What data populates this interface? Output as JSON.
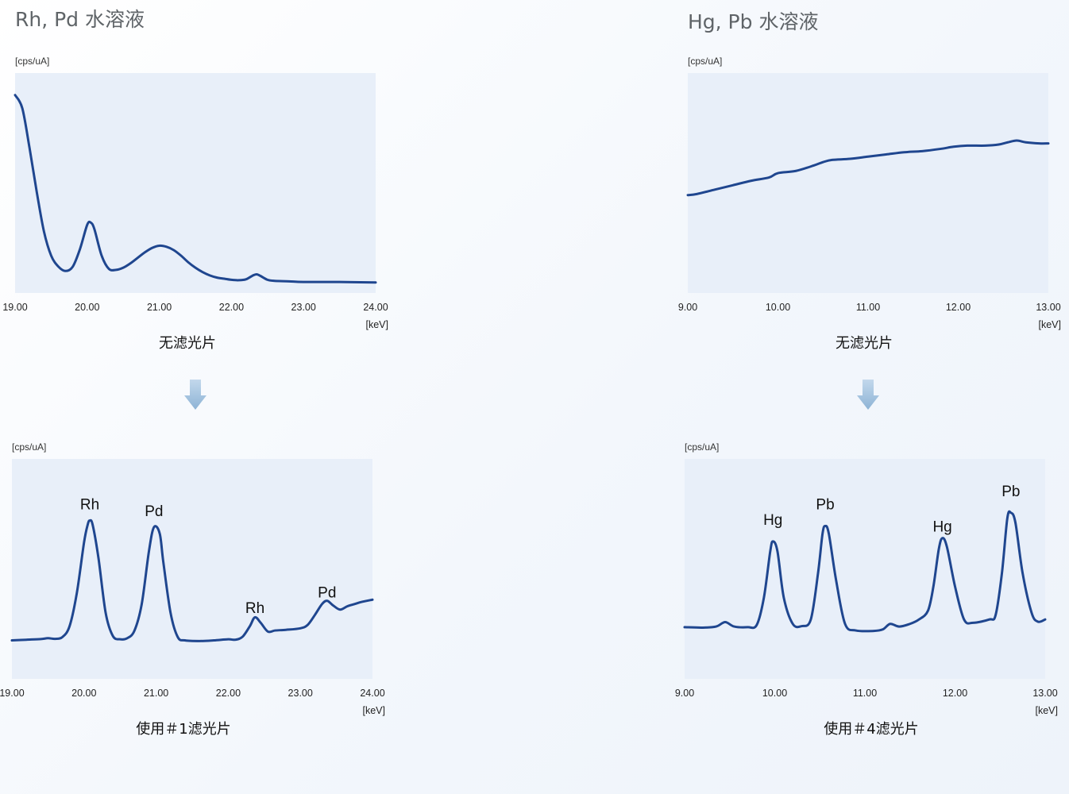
{
  "panels": [
    {
      "title": "Rh, Pd 水溶液",
      "captions": [
        "无滤光片",
        "使用＃1滤光片"
      ],
      "arrow_icon": "down-arrow-icon"
    },
    {
      "title": "Hg, Pb 水溶液",
      "captions": [
        "无滤光片",
        "使用＃4滤光片"
      ],
      "arrow_icon": "down-arrow-icon"
    }
  ],
  "colors": {
    "plot_bg": "#e8eff9",
    "line": "#1f468f",
    "arrow_top": "#bdd4ea",
    "arrow_bottom": "#8fb4d6"
  },
  "chart_data": [
    {
      "type": "line",
      "title": "",
      "ylabel": "[cps/uA]",
      "xlabel": "[keV]",
      "xlim": [
        19.0,
        24.0
      ],
      "ylim": [
        0,
        100
      ],
      "xticks": [
        "19.00",
        "20.00",
        "21.00",
        "22.00",
        "23.00",
        "24.00"
      ],
      "grid": false,
      "peak_labels": [],
      "series": [
        {
          "values": [
            [
              19.0,
              90
            ],
            [
              19.1,
              84
            ],
            [
              19.2,
              66
            ],
            [
              19.3,
              46
            ],
            [
              19.4,
              28
            ],
            [
              19.5,
              17
            ],
            [
              19.6,
              12
            ],
            [
              19.7,
              10
            ],
            [
              19.8,
              12
            ],
            [
              19.9,
              20
            ],
            [
              20.0,
              31
            ],
            [
              20.05,
              32
            ],
            [
              20.1,
              29
            ],
            [
              20.2,
              17
            ],
            [
              20.3,
              11
            ],
            [
              20.4,
              10.5
            ],
            [
              20.5,
              11.5
            ],
            [
              20.6,
              13.5
            ],
            [
              20.7,
              16
            ],
            [
              20.8,
              18.5
            ],
            [
              20.9,
              20.5
            ],
            [
              21.0,
              21.5
            ],
            [
              21.1,
              21
            ],
            [
              21.2,
              19.5
            ],
            [
              21.3,
              17
            ],
            [
              21.4,
              14
            ],
            [
              21.5,
              11.5
            ],
            [
              21.6,
              9.5
            ],
            [
              21.7,
              8
            ],
            [
              21.8,
              7
            ],
            [
              21.9,
              6.5
            ],
            [
              22.0,
              6
            ],
            [
              22.1,
              5.8
            ],
            [
              22.2,
              6.2
            ],
            [
              22.3,
              8
            ],
            [
              22.35,
              8.5
            ],
            [
              22.4,
              7.8
            ],
            [
              22.5,
              6
            ],
            [
              22.6,
              5.5
            ],
            [
              22.8,
              5.3
            ],
            [
              23.0,
              5
            ],
            [
              23.5,
              5
            ],
            [
              24.0,
              4.8
            ]
          ]
        }
      ]
    },
    {
      "type": "line",
      "title": "",
      "ylabel": "[cps/uA]",
      "xlabel": "[keV]",
      "xlim": [
        19.0,
        24.0
      ],
      "ylim": [
        0,
        100
      ],
      "xticks": [
        "19.00",
        "20.00",
        "21.00",
        "22.00",
        "23.00",
        "24.00"
      ],
      "grid": false,
      "peak_labels": [
        {
          "text": "Rh",
          "x": 20.08,
          "y": 77
        },
        {
          "text": "Pd",
          "x": 20.97,
          "y": 74
        },
        {
          "text": "Rh",
          "x": 22.37,
          "y": 30
        },
        {
          "text": "Pd",
          "x": 23.37,
          "y": 37
        }
      ],
      "series": [
        {
          "values": [
            [
              19.0,
              17.5
            ],
            [
              19.2,
              17.8
            ],
            [
              19.4,
              18.1
            ],
            [
              19.5,
              18.5
            ],
            [
              19.6,
              18.2
            ],
            [
              19.7,
              19
            ],
            [
              19.8,
              24
            ],
            [
              19.9,
              39
            ],
            [
              20.0,
              62
            ],
            [
              20.05,
              70
            ],
            [
              20.08,
              72
            ],
            [
              20.12,
              70
            ],
            [
              20.2,
              55
            ],
            [
              20.3,
              30
            ],
            [
              20.4,
              19.5
            ],
            [
              20.5,
              18
            ],
            [
              20.6,
              18.5
            ],
            [
              20.7,
              22
            ],
            [
              20.8,
              34
            ],
            [
              20.9,
              58
            ],
            [
              20.97,
              69
            ],
            [
              21.05,
              66
            ],
            [
              21.1,
              53
            ],
            [
              21.2,
              30
            ],
            [
              21.3,
              19
            ],
            [
              21.4,
              17.5
            ],
            [
              21.6,
              17.2
            ],
            [
              21.8,
              17.5
            ],
            [
              22.0,
              18
            ],
            [
              22.1,
              17.8
            ],
            [
              22.2,
              19.2
            ],
            [
              22.3,
              24
            ],
            [
              22.37,
              28
            ],
            [
              22.45,
              25.5
            ],
            [
              22.55,
              21.5
            ],
            [
              22.65,
              22
            ],
            [
              22.8,
              22.3
            ],
            [
              23.0,
              23
            ],
            [
              23.1,
              24.5
            ],
            [
              23.2,
              29
            ],
            [
              23.3,
              34
            ],
            [
              23.37,
              35.5
            ],
            [
              23.45,
              33.5
            ],
            [
              23.55,
              31.5
            ],
            [
              23.65,
              33
            ],
            [
              23.75,
              34
            ],
            [
              23.85,
              35
            ],
            [
              24.0,
              36
            ]
          ]
        }
      ]
    },
    {
      "type": "line",
      "title": "",
      "ylabel": "[cps/uA]",
      "xlabel": "[keV]",
      "xlim": [
        9.0,
        13.0
      ],
      "ylim": [
        0,
        100
      ],
      "xticks": [
        "9.00",
        "10.00",
        "11.00",
        "12.00",
        "13.00"
      ],
      "grid": false,
      "peak_labels": [],
      "series": [
        {
          "values": [
            [
              9.0,
              44.5
            ],
            [
              9.1,
              45
            ],
            [
              9.3,
              47
            ],
            [
              9.5,
              49
            ],
            [
              9.7,
              51
            ],
            [
              9.9,
              52.5
            ],
            [
              10.0,
              54.5
            ],
            [
              10.2,
              55.5
            ],
            [
              10.4,
              58
            ],
            [
              10.5,
              59.5
            ],
            [
              10.6,
              60.5
            ],
            [
              10.8,
              61
            ],
            [
              11.0,
              62
            ],
            [
              11.2,
              63
            ],
            [
              11.4,
              64
            ],
            [
              11.6,
              64.5
            ],
            [
              11.8,
              65.5
            ],
            [
              11.95,
              66.5
            ],
            [
              12.1,
              67
            ],
            [
              12.3,
              67
            ],
            [
              12.45,
              67.5
            ],
            [
              12.55,
              68.5
            ],
            [
              12.65,
              69.3
            ],
            [
              12.75,
              68.5
            ],
            [
              12.9,
              68
            ],
            [
              13.0,
              68
            ]
          ]
        }
      ]
    },
    {
      "type": "line",
      "title": "",
      "ylabel": "[cps/uA]",
      "xlabel": "[keV]",
      "xlim": [
        9.0,
        13.0
      ],
      "ylim": [
        0,
        100
      ],
      "xticks": [
        "9.00",
        "10.00",
        "11.00",
        "12.00",
        "13.00"
      ],
      "grid": false,
      "peak_labels": [
        {
          "text": "Hg",
          "x": 9.98,
          "y": 70
        },
        {
          "text": "Pb",
          "x": 10.56,
          "y": 77
        },
        {
          "text": "Hg",
          "x": 11.86,
          "y": 67
        },
        {
          "text": "Pb",
          "x": 12.62,
          "y": 83
        }
      ],
      "series": [
        {
          "values": [
            [
              9.0,
              23.5
            ],
            [
              9.2,
              23.3
            ],
            [
              9.35,
              23.8
            ],
            [
              9.45,
              25.8
            ],
            [
              9.55,
              23.8
            ],
            [
              9.7,
              23.5
            ],
            [
              9.8,
              24.5
            ],
            [
              9.88,
              37
            ],
            [
              9.95,
              58
            ],
            [
              9.98,
              62.5
            ],
            [
              10.03,
              58
            ],
            [
              10.1,
              37
            ],
            [
              10.2,
              25
            ],
            [
              10.3,
              24
            ],
            [
              10.4,
              27
            ],
            [
              10.48,
              48
            ],
            [
              10.53,
              66
            ],
            [
              10.56,
              69.5
            ],
            [
              10.6,
              66
            ],
            [
              10.68,
              45
            ],
            [
              10.78,
              25
            ],
            [
              10.9,
              22
            ],
            [
              11.1,
              21.8
            ],
            [
              11.2,
              22.5
            ],
            [
              11.28,
              25
            ],
            [
              11.38,
              23.8
            ],
            [
              11.5,
              25
            ],
            [
              11.6,
              27
            ],
            [
              11.7,
              31
            ],
            [
              11.76,
              42
            ],
            [
              11.82,
              59
            ],
            [
              11.86,
              64
            ],
            [
              11.91,
              60
            ],
            [
              12.0,
              42
            ],
            [
              12.1,
              27
            ],
            [
              12.2,
              25.5
            ],
            [
              12.38,
              27
            ],
            [
              12.45,
              29
            ],
            [
              12.52,
              48
            ],
            [
              12.58,
              73
            ],
            [
              12.62,
              75.5
            ],
            [
              12.67,
              71
            ],
            [
              12.75,
              48
            ],
            [
              12.85,
              30
            ],
            [
              12.92,
              26
            ],
            [
              13.0,
              27
            ]
          ]
        }
      ]
    }
  ]
}
